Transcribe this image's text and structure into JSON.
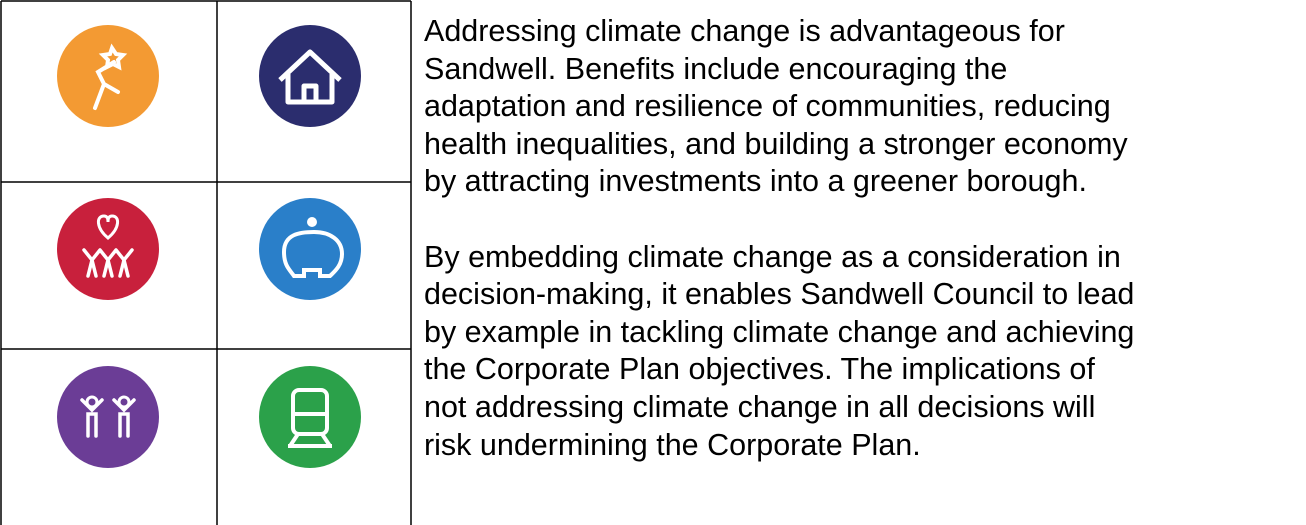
{
  "text": {
    "paragraphs": [
      [
        "Addressing climate change is advantageous for",
        "Sandwell. Benefits include encouraging the",
        "adaptation and resilience of communities, reducing",
        "health inequalities, and building a stronger economy",
        "by attracting investments into a greener borough."
      ],
      [
        "By embedding climate change as a consideration in",
        "decision-making, it enables Sandwell Council to lead",
        "by example in tackling climate change and achieving",
        "the Corporate Plan objectives. The implications of",
        "not addressing climate change in all decisions will",
        "risk undermining the Corporate Plan."
      ]
    ]
  }
}
